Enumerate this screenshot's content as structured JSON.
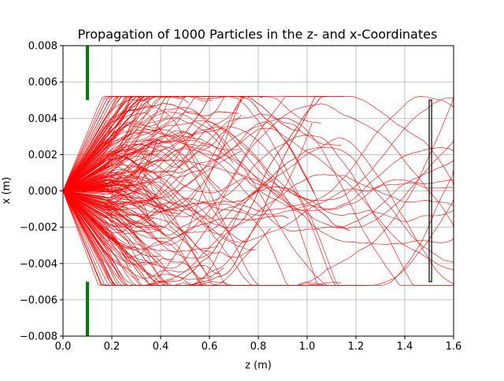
{
  "chart_data": {
    "type": "line",
    "title": "Propagation of 1000 Particles in the z- and x-Coordinates",
    "xlabel": "z (m)",
    "ylabel": "x (m)",
    "xlim": [
      0.0,
      1.6
    ],
    "ylim": [
      -0.008,
      0.008
    ],
    "x_ticks": [
      0.0,
      0.2,
      0.4,
      0.6,
      0.8,
      1.0,
      1.2,
      1.4,
      1.6
    ],
    "x_tick_labels": [
      "0.0",
      "0.2",
      "0.4",
      "0.6",
      "0.8",
      "1.0",
      "1.2",
      "1.4",
      "1.6"
    ],
    "y_ticks": [
      -0.008,
      -0.006,
      -0.004,
      -0.002,
      0.0,
      0.002,
      0.004,
      0.006,
      0.008
    ],
    "y_tick_labels": [
      "−0.008",
      "−0.006",
      "−0.004",
      "−0.002",
      "0.000",
      "0.002",
      "0.004",
      "0.006",
      "0.008"
    ],
    "grid": true,
    "trajectory_color": "#ff0000",
    "aperture": {
      "color": "#008000",
      "z": 0.1,
      "segments": [
        [
          0.005,
          0.008
        ],
        [
          -0.008,
          -0.005
        ]
      ]
    },
    "detector": {
      "color": "#000000",
      "z_range": [
        1.5,
        1.51
      ],
      "x_range": [
        -0.005,
        0.005
      ]
    },
    "trajectories": {
      "count": 1000,
      "z_start": 0.0,
      "x_start": 0.0,
      "spread_max": 0.0052,
      "survivors_reaching_end": 20
    }
  }
}
